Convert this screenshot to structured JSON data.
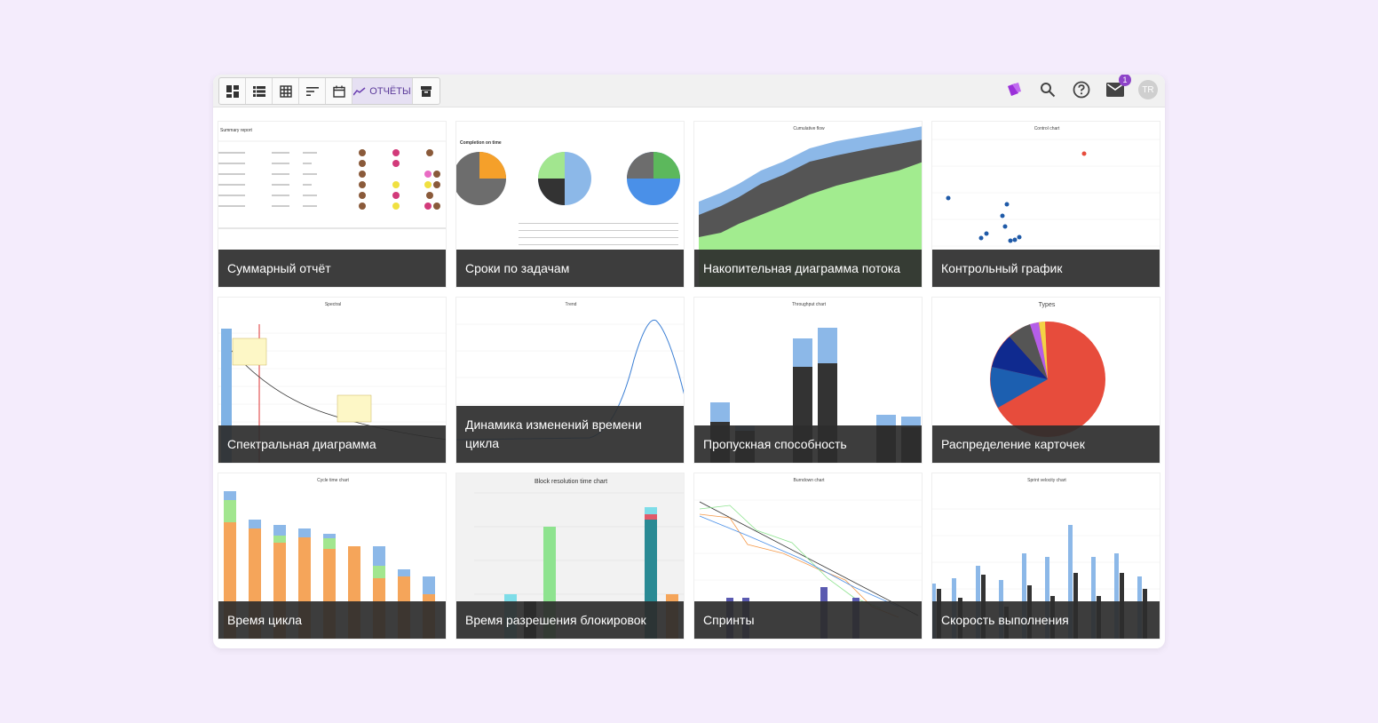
{
  "toolbar": {
    "reports_label": "ОТЧЁТЫ",
    "icons": [
      "dashboard-icon",
      "list-icon",
      "table-icon",
      "sort-icon",
      "calendar-icon",
      "chart-line-icon",
      "archive-icon"
    ]
  },
  "header": {
    "notifications_count": "1",
    "avatar_initials": "TR"
  },
  "cards": [
    {
      "caption": "Суммарный отчёт",
      "thumb_title": "Summary report"
    },
    {
      "caption": "Сроки по задачам",
      "thumb_title": "Completion on time"
    },
    {
      "caption": "Накопительная диаграмма потока",
      "thumb_title": "Cumulative flow"
    },
    {
      "caption": "Контрольный график",
      "thumb_title": "Control chart"
    },
    {
      "caption": "Спектральная диаграмма",
      "thumb_title": "Spectral"
    },
    {
      "caption": "Динамика изменений времени цикла",
      "thumb_title": "Trend"
    },
    {
      "caption": "Пропускная способность",
      "thumb_title": "Throughput chart"
    },
    {
      "caption": "Распределение карточек",
      "thumb_title": "Types"
    },
    {
      "caption": "Время цикла",
      "thumb_title": "Cycle time chart"
    },
    {
      "caption": "Время разрешения блокировок",
      "thumb_title": "Block resolution time chart"
    },
    {
      "caption": "Спринты",
      "thumb_title": "Burndown chart"
    },
    {
      "caption": "Скорость выполнения",
      "thumb_title": "Sprint velocity chart"
    }
  ],
  "colors": {
    "accent": "#8e44c9",
    "caption_bg": "#2d2d2d"
  }
}
